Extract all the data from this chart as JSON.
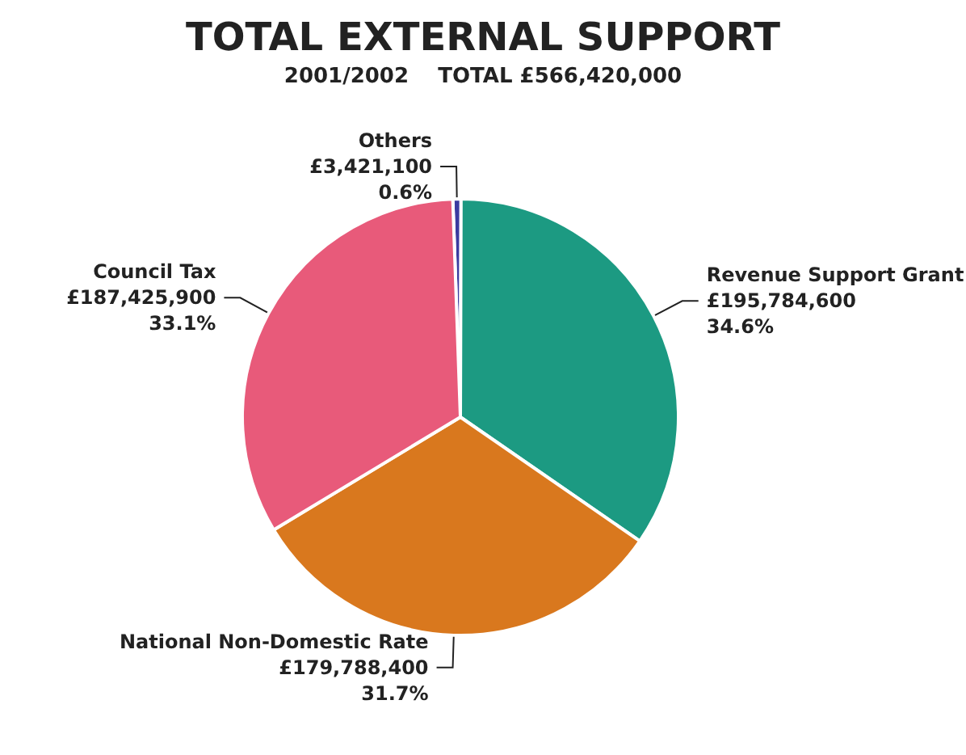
{
  "chart_data": {
    "type": "pie",
    "title": "TOTAL EXTERNAL SUPPORT",
    "subtitle": "2001/2002    TOTAL £566,420,000",
    "categories": [
      "Others",
      "Revenue Support Grant",
      "National Non-Domestic Rate",
      "Council Tax"
    ],
    "values": [
      3421100,
      195784600,
      179788400,
      187425900
    ],
    "colors": [
      "#3b3ba0",
      "#1c9a82",
      "#d9781e",
      "#e85a7a"
    ],
    "value_labels": [
      "£3,421,100\n0.6%",
      "£195,784,600\n34.6%",
      "£179,788,400\n31.7%",
      "£187,425,900\n33.1%"
    ],
    "legend": false
  }
}
